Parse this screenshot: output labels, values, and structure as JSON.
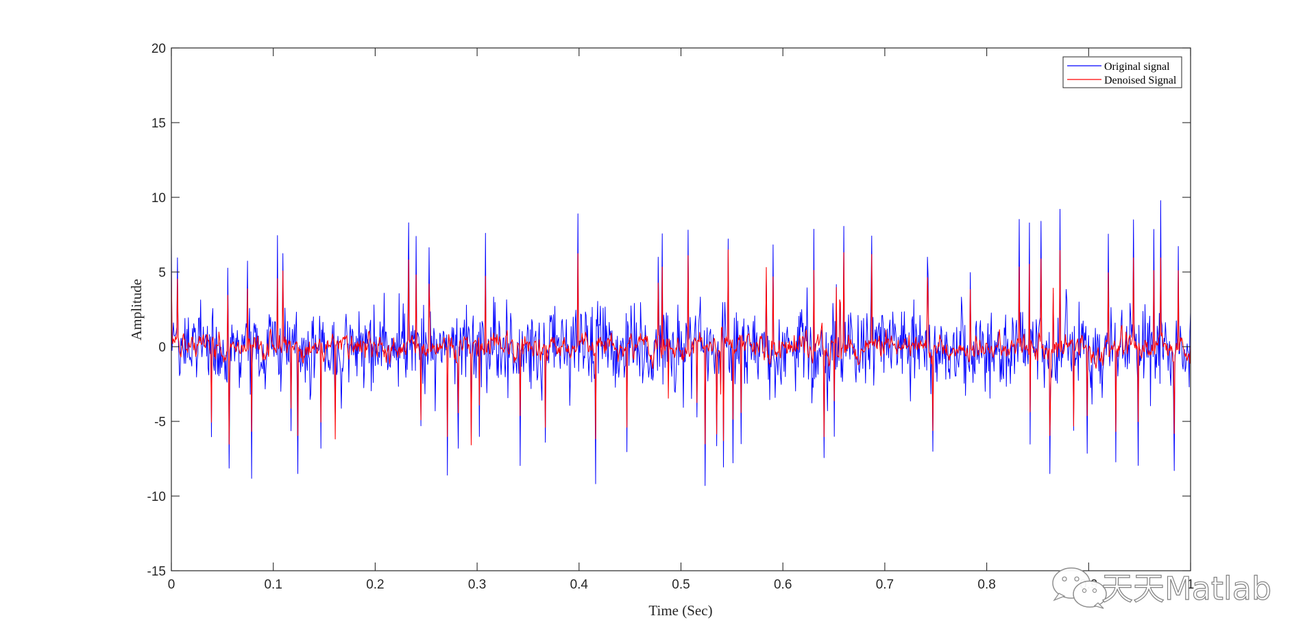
{
  "chart_data": {
    "type": "line",
    "title": "",
    "xlabel": "Time (Sec)",
    "ylabel": "Amplitude",
    "xlim": [
      0,
      1
    ],
    "ylim": [
      -15,
      20
    ],
    "xticks": [
      0,
      0.1,
      0.2,
      0.3,
      0.4,
      0.5,
      0.6,
      0.7,
      0.8,
      0.9,
      1
    ],
    "xtick_labels": [
      "0",
      "0.1",
      "0.2",
      "0.3",
      "0.4",
      "0.5",
      "0.6",
      "0.7",
      "0.8",
      "0.9",
      "1"
    ],
    "yticks": [
      -15,
      -10,
      -5,
      0,
      5,
      10,
      15,
      20
    ],
    "ytick_labels": [
      "-15",
      "-10",
      "-5",
      "0",
      "5",
      "10",
      "15",
      "20"
    ],
    "grid": false,
    "legend_position": "northeast",
    "series": [
      {
        "name": "Original signal",
        "color": "#0000ff",
        "description": "Noisy signal, roughly zero-mean, spikes between about -9.3 and +9.2",
        "approx_range": [
          -9.3,
          9.2
        ],
        "notable_peaks": [
          {
            "x": 0.233,
            "y": 8.3
          },
          {
            "x": 0.399,
            "y": 8.9
          },
          {
            "x": 0.853,
            "y": 8.4
          },
          {
            "x": 0.872,
            "y": 9.2
          },
          {
            "x": 0.944,
            "y": 8.5
          },
          {
            "x": 0.524,
            "y": -9.3
          },
          {
            "x": 0.124,
            "y": -8.5
          },
          {
            "x": 0.271,
            "y": -8.6
          },
          {
            "x": 0.862,
            "y": -8.5
          },
          {
            "x": 0.984,
            "y": -8.3
          }
        ]
      },
      {
        "name": "Denoised Signal",
        "color": "#ff0000",
        "description": "Smoothed version of the signal, mostly within -1..+1 with sharp spikes up to about +/-6",
        "approx_range": [
          -6.5,
          6.3
        ],
        "notable_peaks": [
          {
            "x": 0.507,
            "y": 6.1
          },
          {
            "x": 0.66,
            "y": 6.3
          },
          {
            "x": 0.542,
            "y": -6.3
          }
        ]
      }
    ],
    "num_samples": 1500
  },
  "legend": {
    "items": [
      {
        "label": "Original signal",
        "color": "#0000ff"
      },
      {
        "label": "Denoised Signal",
        "color": "#ff0000"
      }
    ]
  },
  "watermark": {
    "text": "天天Matlab"
  }
}
